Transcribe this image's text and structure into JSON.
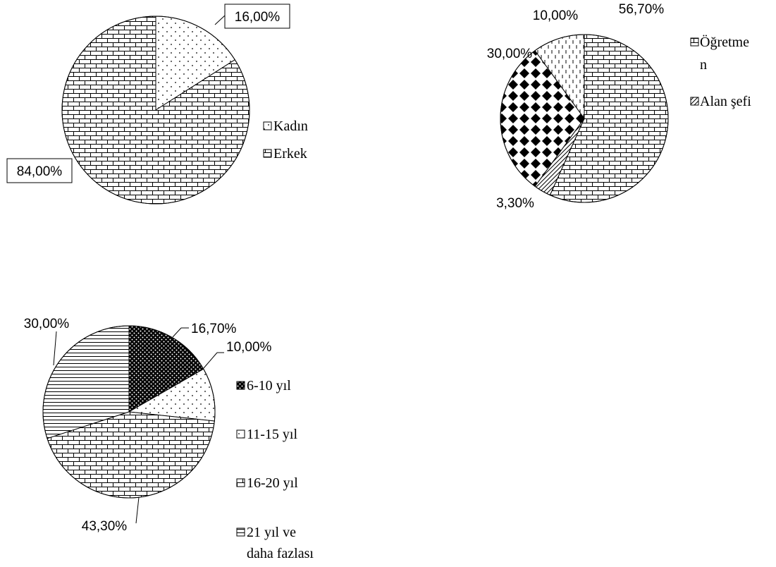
{
  "chart_data": [
    {
      "type": "pie",
      "title": "",
      "slices": [
        {
          "label": "Kadın",
          "value": 16.0,
          "value_label": "16,00%",
          "pattern": "dots"
        },
        {
          "label": "Erkek",
          "value": 84.0,
          "value_label": "84,00%",
          "pattern": "brick"
        }
      ],
      "legend": [
        {
          "label": "Kadın",
          "pattern": "dots"
        },
        {
          "label": "Erkek",
          "pattern": "brick"
        }
      ],
      "legend_position": "right"
    },
    {
      "type": "pie",
      "title": "",
      "slices": [
        {
          "label": "",
          "value": 56.7,
          "value_label": "56,70%",
          "pattern": "brick"
        },
        {
          "label": "",
          "value": 3.3,
          "value_label": "3,30%",
          "pattern": "diagonal"
        },
        {
          "label": "",
          "value": 30.0,
          "value_label": "30,00%",
          "pattern": "diamonds"
        },
        {
          "label": "",
          "value": 10.0,
          "value_label": "10,00%",
          "pattern": "dashes"
        }
      ],
      "legend": [
        {
          "label": "Öğretmen",
          "label_lines": [
            "Öğretme",
            "n"
          ],
          "pattern": "brick"
        },
        {
          "label": "Alan şefi",
          "label_lines": [
            "Alan şefi"
          ],
          "pattern": "diagonal"
        }
      ],
      "legend_position": "right (truncated)"
    },
    {
      "type": "pie",
      "title": "",
      "slices": [
        {
          "label": "6-10 yıl",
          "value": 16.7,
          "value_label": "16,70%",
          "pattern": "dense-dots"
        },
        {
          "label": "11-15 yıl",
          "value": 10.0,
          "value_label": "10,00%",
          "pattern": "dots"
        },
        {
          "label": "16-20 yıl",
          "value": 43.3,
          "value_label": "43,30%",
          "pattern": "brick"
        },
        {
          "label": "21 yıl ve daha fazlası",
          "value": 30.0,
          "value_label": "30,00%",
          "pattern": "hlines"
        }
      ],
      "legend": [
        {
          "label": "6-10 yıl",
          "label_lines": [
            "6-10 yıl"
          ],
          "pattern": "dense-dots"
        },
        {
          "label": "11-15 yıl",
          "label_lines": [
            "11-15 yıl"
          ],
          "pattern": "dots"
        },
        {
          "label": "16-20 yıl",
          "label_lines": [
            "16-20 yıl"
          ],
          "pattern": "brick"
        },
        {
          "label": "21 yıl ve daha fazlası",
          "label_lines": [
            "21 yıl ve",
            "daha fazlası"
          ],
          "pattern": "hlines"
        }
      ],
      "legend_position": "right"
    }
  ]
}
